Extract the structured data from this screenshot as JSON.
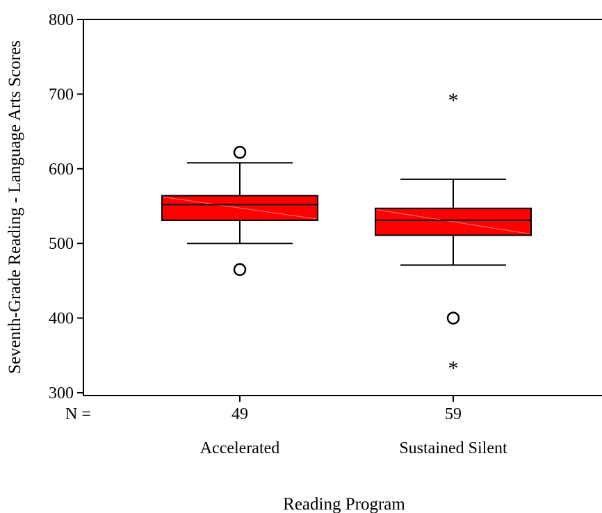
{
  "chart_data": {
    "type": "boxplot",
    "title": "",
    "xlabel": "Reading Program",
    "ylabel": "Seventh-Grade Reading - Language Arts Scores",
    "ylim": [
      300,
      800
    ],
    "yticks": [
      300,
      400,
      500,
      600,
      700,
      800
    ],
    "n_label": "N =",
    "box_color": "#ff0000",
    "groups": [
      {
        "label": "Accelerated",
        "n": "49",
        "whisker_low": 500,
        "q1": 531,
        "median": 552,
        "q3": 564,
        "whisker_high": 608,
        "outliers": [
          622,
          465
        ],
        "extremes": []
      },
      {
        "label": "Sustained Silent",
        "n": "59",
        "whisker_low": 471,
        "q1": 511,
        "median": 531,
        "q3": 547,
        "whisker_high": 586,
        "outliers": [
          400
        ],
        "extremes": [
          695,
          336
        ]
      }
    ]
  }
}
